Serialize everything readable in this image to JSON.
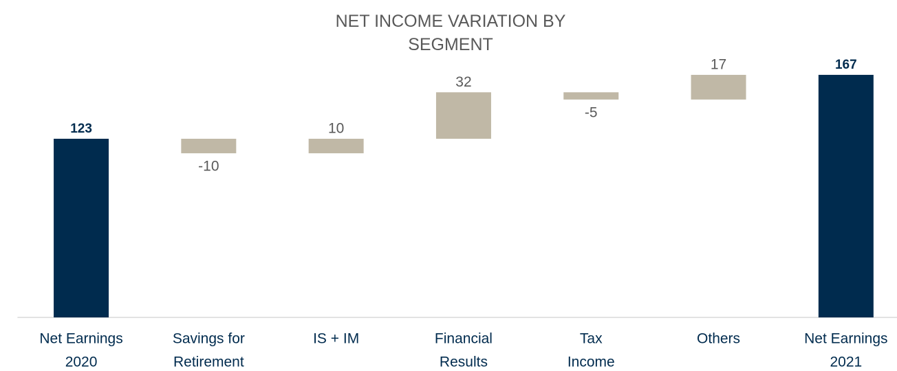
{
  "chart_data": {
    "type": "waterfall",
    "title": "NET INCOME VARIATION BY SEGMENT",
    "categories": [
      [
        "Net Earnings",
        "2020"
      ],
      [
        "Savings for",
        "Retirement"
      ],
      [
        "IS + IM"
      ],
      [
        "Financial",
        "Results"
      ],
      [
        "Tax",
        "Income"
      ],
      [
        "Others"
      ],
      [
        "Net Earnings",
        "2021"
      ]
    ],
    "values": [
      123,
      -10,
      10,
      32,
      -5,
      17,
      167
    ],
    "measures": [
      "total",
      "relative",
      "relative",
      "relative",
      "relative",
      "relative",
      "total"
    ],
    "total_color": "#002b4e",
    "delta_color": "#c0b8a6",
    "ylim": [
      0,
      170
    ]
  }
}
